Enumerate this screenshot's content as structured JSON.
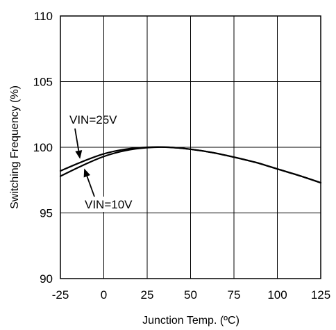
{
  "chart_data": {
    "type": "line",
    "title": "",
    "xlabel": "Junction Temp. (ºC)",
    "ylabel": "Switching Frequency (%)",
    "xlim": [
      -25,
      125
    ],
    "ylim": [
      90,
      110
    ],
    "x_ticks": [
      "-25",
      "0",
      "25",
      "50",
      "75",
      "100",
      "125"
    ],
    "y_ticks": [
      "90",
      "95",
      "100",
      "105",
      "110"
    ],
    "grid": true,
    "series": [
      {
        "name": "VIN=25V",
        "x": [
          -25,
          -12.5,
          0,
          12.5,
          25,
          37.5,
          50,
          62.5,
          75,
          87.5,
          100,
          112.5,
          125
        ],
        "values": [
          98.2,
          98.9,
          99.5,
          99.85,
          100.0,
          100.0,
          99.85,
          99.6,
          99.25,
          98.85,
          98.35,
          97.85,
          97.3
        ]
      },
      {
        "name": "VIN=10V",
        "x": [
          -25,
          -12.5,
          0,
          12.5,
          25,
          37.5,
          50,
          62.5,
          75,
          87.5,
          100,
          112.5,
          125
        ],
        "values": [
          97.8,
          98.6,
          99.3,
          99.75,
          99.97,
          100.0,
          99.85,
          99.6,
          99.25,
          98.85,
          98.35,
          97.85,
          97.3
        ]
      }
    ],
    "annotations": [
      {
        "text": "VIN=25V",
        "target_series": "VIN=25V",
        "point": [
          -12.5,
          98.9
        ]
      },
      {
        "text": "VIN=10V",
        "target_series": "VIN=10V",
        "point": [
          -12.5,
          98.6
        ]
      }
    ]
  }
}
